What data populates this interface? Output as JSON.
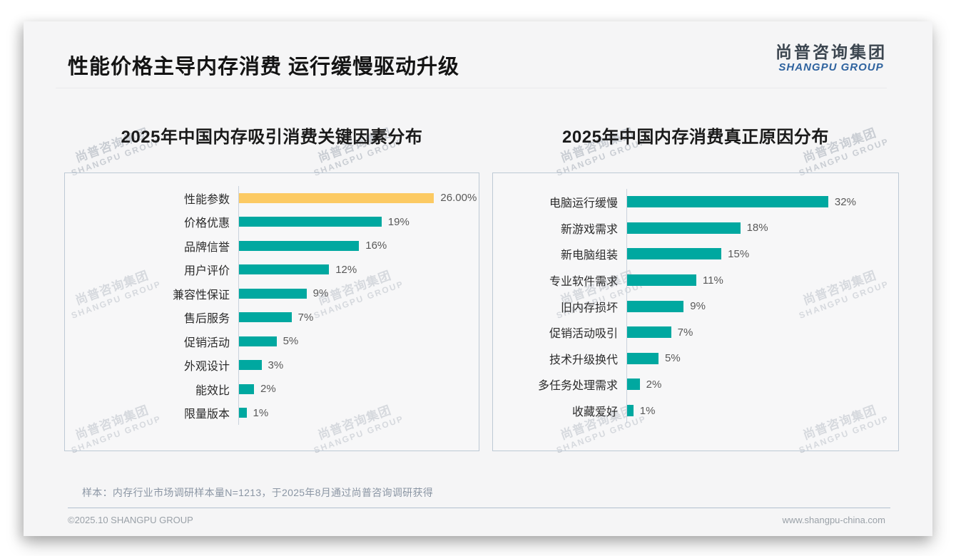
{
  "page": {
    "title": "性能价格主导内存消费 运行缓慢驱动升级"
  },
  "logo": {
    "cn": "尚普咨询集团",
    "en": "SHANGPU GROUP"
  },
  "watermark": {
    "cn": "尚普咨询集团",
    "en": "SHANGPU GROUP"
  },
  "colors": {
    "teal": "#00a8a0",
    "highlight": "#fcca63",
    "logo_blue": "#2f639f",
    "panel_border": "#bdc9d5"
  },
  "chart_data": [
    {
      "type": "bar",
      "orientation": "horizontal",
      "title": "2025年中国内存吸引消费关键因素分布",
      "categories": [
        "性能参数",
        "价格优惠",
        "品牌信誉",
        "用户评价",
        "兼容性保证",
        "售后服务",
        "促销活动",
        "外观设计",
        "能效比",
        "限量版本"
      ],
      "values": [
        26,
        19,
        16,
        12,
        9,
        7,
        5,
        3,
        2,
        1
      ],
      "value_labels": [
        "26.00%",
        "19%",
        "16%",
        "12%",
        "9%",
        "7%",
        "5%",
        "3%",
        "2%",
        "1%"
      ],
      "unit": "%",
      "xlim": [
        0,
        31
      ],
      "highlight_index": 0,
      "grid": false,
      "legend": "none"
    },
    {
      "type": "bar",
      "orientation": "horizontal",
      "title": "2025年中国内存消费真正原因分布",
      "categories": [
        "电脑运行缓慢",
        "新游戏需求",
        "新电脑组装",
        "专业软件需求",
        "旧内存损坏",
        "促销活动吸引",
        "技术升级换代",
        "多任务处理需求",
        "收藏爱好"
      ],
      "values": [
        32,
        18,
        15,
        11,
        9,
        7,
        5,
        2,
        1
      ],
      "value_labels": [
        "32%",
        "18%",
        "15%",
        "11%",
        "9%",
        "7%",
        "5%",
        "2%",
        "1%"
      ],
      "unit": "%",
      "xlim": [
        0,
        42
      ],
      "highlight_index": -1,
      "grid": false,
      "legend": "none"
    }
  ],
  "footer": {
    "sample_note": "样本：内存行业市场调研样本量N=1213，于2025年8月通过尚普咨询调研获得",
    "copyright": "©2025.10 SHANGPU GROUP",
    "website": "www.shangpu-china.com"
  }
}
